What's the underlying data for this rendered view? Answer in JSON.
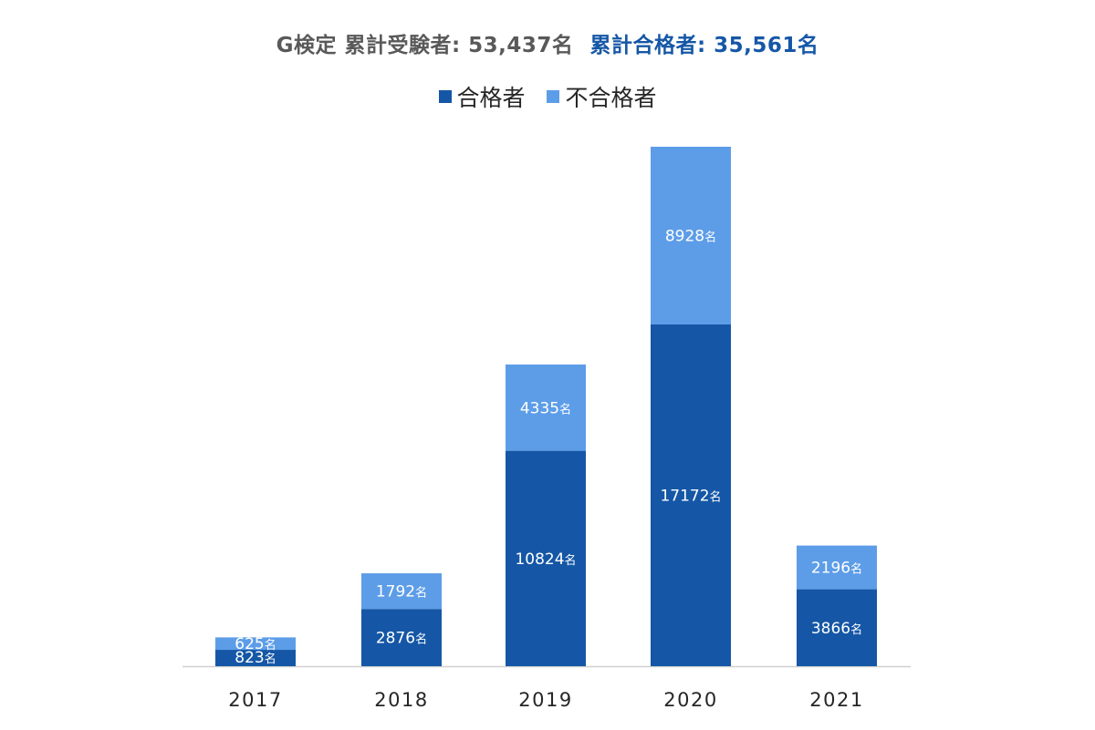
{
  "title": {
    "part_a": "G検定 累計受験者: 53,437名",
    "part_b": "累計合格者: 35,561名"
  },
  "colors": {
    "pass": "#1557a6",
    "fail": "#5d9de8",
    "axis": "#d0d0d0"
  },
  "chart_data": {
    "type": "bar",
    "stacked": true,
    "categories": [
      "2017",
      "2018",
      "2019",
      "2020",
      "2021"
    ],
    "series": [
      {
        "name": "合格者",
        "values": [
          823,
          2876,
          10824,
          17172,
          3866
        ]
      },
      {
        "name": "不合格者",
        "values": [
          625,
          1792,
          4335,
          8928,
          2196
        ]
      }
    ],
    "data_label_unit": "名",
    "legend_position": "top-center",
    "grid": false
  }
}
